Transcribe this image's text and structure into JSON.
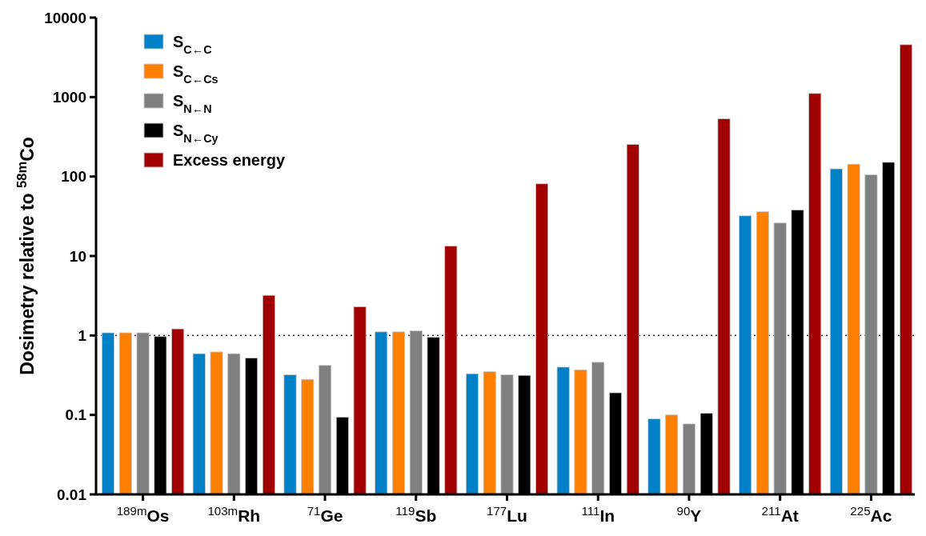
{
  "chart_data": {
    "type": "bar",
    "ylabel": "Dosimetry relative to $^{58m}$Co",
    "categories": [
      "$^{189m}$Os",
      "$^{103m}$Rh",
      "$^{71}$Ge",
      "$^{119}$Sb",
      "$^{177}$Lu",
      "$^{111}$In",
      "$^{90}$Y",
      "$^{211}$At",
      "$^{225}$Ac"
    ],
    "series": [
      {
        "name": "S$_{C←C}$",
        "color": "#0080c6",
        "values": [
          1.08,
          0.59,
          0.32,
          1.11,
          0.33,
          0.4,
          0.089,
          32,
          125
        ]
      },
      {
        "name": "S$_{C←Cs}$",
        "color": "#ff8000",
        "values": [
          1.08,
          0.62,
          0.28,
          1.11,
          0.35,
          0.37,
          0.1,
          36,
          143
        ]
      },
      {
        "name": "S$_{N←N}$",
        "color": "#808080",
        "values": [
          1.08,
          0.59,
          0.42,
          1.14,
          0.32,
          0.46,
          0.077,
          26,
          105
        ]
      },
      {
        "name": "S$_{N←Cy}$",
        "color": "#000000",
        "values": [
          0.97,
          0.52,
          0.094,
          0.95,
          0.315,
          0.19,
          0.105,
          38,
          151
        ]
      },
      {
        "name": "Excess energy",
        "color": "#a00000",
        "values": [
          1.21,
          3.2,
          2.3,
          13.3,
          81,
          253,
          534,
          1110,
          4560
        ]
      }
    ],
    "log": true,
    "ylim": [
      0.01,
      10000
    ],
    "yticks": [
      0.01,
      0.1,
      1,
      10,
      100,
      1000,
      10000
    ],
    "ref_lines": [
      {
        "axis": "y",
        "value": 1,
        "line_style": "dotted",
        "color": "#333333"
      }
    ],
    "legend": "top left",
    "grid": false
  }
}
